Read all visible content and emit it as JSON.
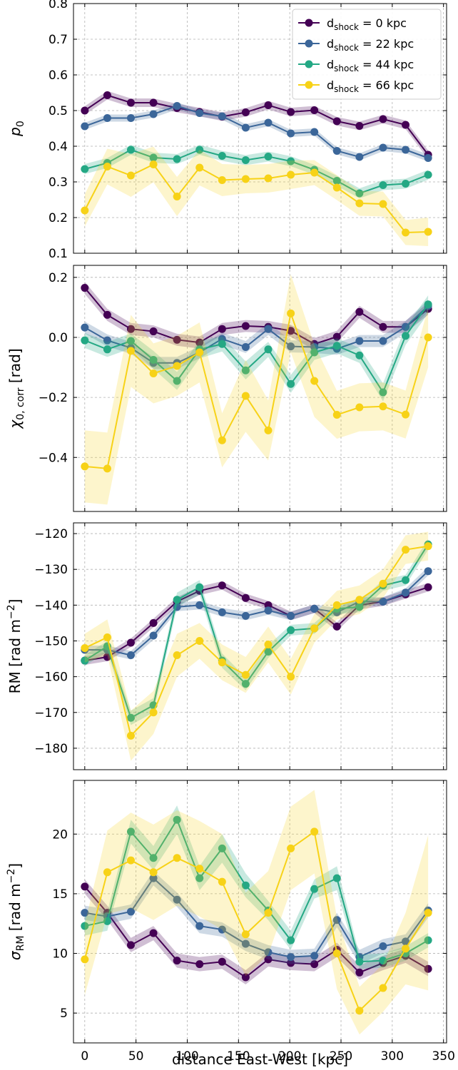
{
  "colors": {
    "d0": "#440154",
    "d22": "#3b6699",
    "d44": "#24a884",
    "d66": "#f7d217"
  },
  "legend": {
    "entries": [
      {
        "key": "d0",
        "prefix": "d",
        "sub": "shock",
        "suffix": " = 0 kpc"
      },
      {
        "key": "d22",
        "prefix": "d",
        "sub": "shock",
        "suffix": " = 22 kpc"
      },
      {
        "key": "d44",
        "prefix": "d",
        "sub": "shock",
        "suffix": " = 44 kpc"
      },
      {
        "key": "d66",
        "prefix": "d",
        "sub": "shock",
        "suffix": " = 66 kpc"
      }
    ],
    "placement": "top-right"
  },
  "chart_data": [
    {
      "type": "line",
      "ylabel": "p0",
      "ylim": [
        0.1,
        0.8
      ],
      "yticks": [
        0.1,
        0.2,
        0.3,
        0.4,
        0.5,
        0.6,
        0.7,
        0.8
      ],
      "x": [
        0,
        22,
        45,
        67,
        90,
        112,
        134,
        157,
        179,
        201,
        224,
        246,
        268,
        291,
        313,
        335
      ],
      "grid": true,
      "series": [
        {
          "key": "d0",
          "values": [
            0.5,
            0.543,
            0.522,
            0.522,
            0.507,
            0.496,
            0.483,
            0.495,
            0.515,
            0.496,
            0.501,
            0.47,
            0.457,
            0.476,
            0.46,
            0.376
          ],
          "band": [
            0.012,
            0.012,
            0.012,
            0.012,
            0.012,
            0.012,
            0.012,
            0.012,
            0.012,
            0.012,
            0.012,
            0.012,
            0.012,
            0.012,
            0.012,
            0.012
          ]
        },
        {
          "key": "d22",
          "values": [
            0.456,
            0.479,
            0.479,
            0.49,
            0.513,
            0.493,
            0.484,
            0.452,
            0.466,
            0.436,
            0.44,
            0.387,
            0.37,
            0.396,
            0.39,
            0.367
          ],
          "band": [
            0.01,
            0.01,
            0.01,
            0.01,
            0.01,
            0.01,
            0.01,
            0.01,
            0.01,
            0.01,
            0.01,
            0.01,
            0.01,
            0.01,
            0.01,
            0.01
          ]
        },
        {
          "key": "d44",
          "values": [
            0.336,
            0.353,
            0.39,
            0.368,
            0.364,
            0.39,
            0.373,
            0.361,
            0.371,
            0.358,
            0.334,
            0.303,
            0.268,
            0.291,
            0.295,
            0.32
          ],
          "band": [
            0.014,
            0.014,
            0.014,
            0.014,
            0.014,
            0.014,
            0.014,
            0.014,
            0.014,
            0.014,
            0.014,
            0.014,
            0.014,
            0.014,
            0.014,
            0.014
          ]
        },
        {
          "key": "d66",
          "values": [
            0.22,
            0.343,
            0.318,
            0.349,
            0.259,
            0.34,
            0.305,
            0.308,
            0.31,
            0.32,
            0.326,
            0.284,
            0.24,
            0.238,
            0.158,
            0.16
          ],
          "band": [
            0.045,
            0.05,
            0.06,
            0.05,
            0.055,
            0.05,
            0.045,
            0.04,
            0.04,
            0.04,
            0.035,
            0.035,
            0.035,
            0.035,
            0.035,
            0.04
          ]
        }
      ]
    },
    {
      "type": "line",
      "ylabel": "χ0,corr [rad]",
      "ylim": [
        -0.58,
        0.24
      ],
      "yticks": [
        -0.4,
        -0.2,
        0.0,
        0.2
      ],
      "x": [
        0,
        22,
        45,
        67,
        90,
        112,
        134,
        157,
        179,
        201,
        224,
        246,
        268,
        291,
        313,
        335
      ],
      "grid": true,
      "series": [
        {
          "key": "d0",
          "values": [
            0.165,
            0.075,
            0.028,
            0.02,
            -0.008,
            -0.017,
            0.028,
            0.038,
            0.035,
            0.022,
            -0.022,
            0.002,
            0.085,
            0.035,
            0.035,
            0.095
          ],
          "band": [
            0.02,
            0.02,
            0.02,
            0.02,
            0.02,
            0.02,
            0.02,
            0.02,
            0.02,
            0.02,
            0.02,
            0.02,
            0.02,
            0.02,
            0.02,
            0.02
          ]
        },
        {
          "key": "d22",
          "values": [
            0.033,
            -0.01,
            -0.035,
            -0.085,
            -0.085,
            -0.05,
            -0.005,
            -0.032,
            0.028,
            -0.03,
            -0.032,
            -0.038,
            -0.012,
            -0.012,
            0.035,
            0.105
          ],
          "band": [
            0.02,
            0.02,
            0.02,
            0.02,
            0.02,
            0.02,
            0.02,
            0.02,
            0.02,
            0.02,
            0.02,
            0.02,
            0.02,
            0.02,
            0.02,
            0.02
          ]
        },
        {
          "key": "d44",
          "values": [
            -0.01,
            -0.04,
            -0.012,
            -0.075,
            -0.145,
            -0.04,
            -0.022,
            -0.11,
            -0.04,
            -0.155,
            -0.05,
            -0.028,
            -0.06,
            -0.183,
            0.005,
            0.11
          ],
          "band": [
            0.025,
            0.025,
            0.025,
            0.03,
            0.03,
            0.03,
            0.025,
            0.03,
            0.025,
            0.03,
            0.025,
            0.025,
            0.025,
            0.03,
            0.03,
            0.03
          ]
        },
        {
          "key": "d66",
          "values": [
            -0.43,
            -0.437,
            -0.045,
            -0.12,
            -0.095,
            -0.05,
            -0.343,
            -0.195,
            -0.31,
            0.08,
            -0.145,
            -0.258,
            -0.233,
            -0.23,
            -0.257,
            0.0
          ],
          "band": [
            0.12,
            0.12,
            0.12,
            0.1,
            0.1,
            0.1,
            0.09,
            0.12,
            0.1,
            0.13,
            0.12,
            0.08,
            0.08,
            0.08,
            0.08,
            0.1
          ]
        }
      ]
    },
    {
      "type": "line",
      "ylabel": "RM [rad m⁻²]",
      "ylim": [
        -186,
        -117
      ],
      "yticks": [
        -180,
        -170,
        -160,
        -150,
        -140,
        -130,
        -120
      ],
      "x": [
        0,
        22,
        45,
        67,
        90,
        112,
        134,
        157,
        179,
        201,
        224,
        246,
        268,
        291,
        313,
        335
      ],
      "grid": true,
      "series": [
        {
          "key": "d0",
          "values": [
            -155.5,
            -154.5,
            -150.5,
            -145.0,
            -139.0,
            -136.0,
            -134.5,
            -138.0,
            -140.0,
            -143.0,
            -141.0,
            -146.0,
            -140.0,
            -139.0,
            -137.0,
            -135.0
          ],
          "band": [
            1.2,
            1.2,
            1.2,
            1.2,
            1.2,
            1.2,
            1.2,
            1.2,
            1.2,
            1.2,
            1.2,
            1.2,
            1.2,
            1.2,
            1.2,
            1.2
          ]
        },
        {
          "key": "d22",
          "values": [
            -152.5,
            -152.5,
            -154.0,
            -148.5,
            -140.5,
            -140.0,
            -142.0,
            -143.0,
            -141.5,
            -143.0,
            -141.0,
            -142.0,
            -139.0,
            -139.0,
            -136.5,
            -130.5
          ],
          "band": [
            1.2,
            1.2,
            1.2,
            1.2,
            1.2,
            1.2,
            1.2,
            1.2,
            1.2,
            1.2,
            1.2,
            1.2,
            1.2,
            1.2,
            1.2,
            1.2
          ]
        },
        {
          "key": "d44",
          "values": [
            -155.5,
            -151.5,
            -171.5,
            -168.0,
            -138.5,
            -135.0,
            -155.5,
            -162.0,
            -153.0,
            -147.0,
            -146.5,
            -141.0,
            -140.5,
            -134.5,
            -133.0,
            -123.0
          ],
          "band": [
            1.5,
            1.5,
            2.0,
            2.0,
            2.0,
            2.0,
            2.0,
            1.8,
            1.8,
            1.5,
            1.5,
            1.5,
            1.5,
            1.5,
            1.5,
            1.5
          ]
        },
        {
          "key": "d66",
          "values": [
            -152.0,
            -149.0,
            -176.5,
            -170.0,
            -154.0,
            -150.0,
            -156.0,
            -159.5,
            -151.0,
            -160.0,
            -146.5,
            -140.0,
            -138.5,
            -134.0,
            -124.5,
            -123.5
          ],
          "band": [
            4.0,
            5.0,
            7.0,
            6.0,
            6.0,
            5.0,
            5.0,
            5.0,
            5.0,
            5.0,
            4.0,
            4.0,
            4.0,
            4.0,
            4.0,
            4.0
          ]
        }
      ]
    },
    {
      "type": "line",
      "ylabel": "σRM [rad m⁻²]",
      "ylim": [
        2.5,
        24.5
      ],
      "yticks": [
        5,
        10,
        15,
        20
      ],
      "xlabel": "distance East-West [kpc]",
      "xticks": [
        0,
        50,
        100,
        150,
        200,
        250,
        300,
        350
      ],
      "x": [
        0,
        22,
        45,
        67,
        90,
        112,
        134,
        157,
        179,
        201,
        224,
        246,
        268,
        291,
        313,
        335
      ],
      "grid": true,
      "series": [
        {
          "key": "d0",
          "values": [
            15.6,
            13.4,
            10.7,
            11.7,
            9.4,
            9.1,
            9.3,
            8.0,
            9.5,
            9.2,
            9.1,
            10.3,
            8.4,
            9.2,
            9.8,
            8.7
          ],
          "band": [
            0.6,
            0.6,
            0.6,
            0.6,
            0.6,
            0.6,
            0.6,
            0.6,
            0.6,
            0.6,
            0.6,
            0.6,
            0.6,
            0.6,
            0.6,
            0.6
          ]
        },
        {
          "key": "d22",
          "values": [
            13.4,
            13.1,
            13.5,
            16.3,
            14.5,
            12.3,
            12.0,
            10.8,
            10.1,
            9.7,
            9.8,
            12.8,
            9.7,
            10.6,
            11.0,
            13.6
          ],
          "band": [
            0.6,
            0.6,
            0.6,
            0.6,
            0.6,
            0.6,
            0.6,
            0.6,
            0.6,
            0.6,
            0.6,
            0.6,
            0.6,
            0.6,
            0.6,
            0.6
          ]
        },
        {
          "key": "d44",
          "values": [
            12.3,
            12.7,
            20.2,
            18.0,
            21.2,
            16.3,
            18.8,
            15.7,
            13.6,
            11.1,
            15.4,
            16.3,
            9.3,
            9.4,
            10.0,
            11.1
          ],
          "band": [
            0.8,
            0.8,
            1.0,
            1.0,
            1.2,
            1.0,
            1.2,
            1.0,
            0.8,
            0.8,
            0.8,
            1.0,
            0.6,
            0.6,
            0.6,
            0.6
          ]
        },
        {
          "key": "d66",
          "values": [
            9.5,
            16.8,
            17.8,
            16.8,
            18.0,
            17.1,
            16.0,
            11.6,
            13.4,
            18.8,
            20.2,
            10.0,
            5.2,
            7.1,
            10.4,
            13.4
          ],
          "band": [
            3.0,
            3.5,
            4.0,
            4.0,
            4.0,
            4.0,
            4.0,
            3.5,
            3.5,
            3.5,
            3.5,
            3.0,
            2.0,
            2.0,
            3.0,
            6.5
          ]
        }
      ]
    }
  ]
}
